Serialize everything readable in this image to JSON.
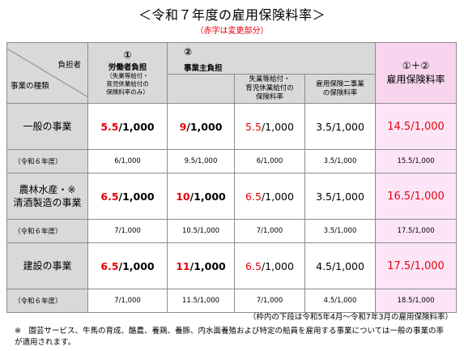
{
  "title": "＜令和７年度の雇用保険料率＞",
  "subtitle": "（赤字は変更部分）",
  "header": {
    "burden": "負担者",
    "business_type": "事業の種類",
    "worker_num": "①",
    "worker_label": "労働者負担",
    "worker_sub1": "（失業等給付・",
    "worker_sub2": "育児休業給付の",
    "worker_sub3": "保険料率のみ）",
    "employer_num": "②",
    "employer_label": "事業主負担",
    "employer_sub_a1": "失業等給付・",
    "employer_sub_a2": "育児休業給付の",
    "employer_sub_a3": "保険料率",
    "employer_sub_b1": "雇用保険二事業",
    "employer_sub_b2": "の保険料率",
    "total_num": "①＋②",
    "total_label": "雇用保険料率"
  },
  "rows": [
    {
      "category": "一般の事業",
      "category_line2": "",
      "worker_red": "5.5",
      "worker_rest": "/1,000",
      "employer_red": "9",
      "employer_rest": "/1,000",
      "emp_a_red": "5.5",
      "emp_a_rest": "/1,000",
      "emp_b": "3.5/1,000",
      "total": "14.5/1,000",
      "prev_label": "（令和６年度）",
      "prev_worker": "6/1,000",
      "prev_employer": "9.5/1,000",
      "prev_emp_a": "6/1,000",
      "prev_emp_b": "3.5/1,000",
      "prev_total": "15.5/1,000"
    },
    {
      "category": "農林水産・※",
      "category_line2": "清酒製造の事業",
      "worker_red": "6.5",
      "worker_rest": "/1,000",
      "employer_red": "10",
      "employer_rest": "/1,000",
      "emp_a_red": "6.5",
      "emp_a_rest": "/1,000",
      "emp_b": "3.5/1,000",
      "total": "16.5/1,000",
      "prev_label": "（令和６年度）",
      "prev_worker": "7/1,000",
      "prev_employer": "10.5/1,000",
      "prev_emp_a": "7/1,000",
      "prev_emp_b": "3.5/1,000",
      "prev_total": "17.5/1,000"
    },
    {
      "category": "建設の事業",
      "category_line2": "",
      "worker_red": "6.5",
      "worker_rest": "/1,000",
      "employer_red": "11",
      "employer_rest": "/1,000",
      "emp_a_red": "6.5",
      "emp_a_rest": "/1,000",
      "emp_b": "4.5/1,000",
      "total": "17.5/1,000",
      "prev_label": "（令和６年度）",
      "prev_worker": "7/1,000",
      "prev_employer": "11.5/1,000",
      "prev_emp_a": "7/1,000",
      "prev_emp_b": "4.5/1,000",
      "prev_total": "18.5/1,000"
    }
  ],
  "note_period": "（枠内の下段は令和5年4月～令和7年3月の雇用保険料率）",
  "note_footnote": "※　園芸サービス、牛馬の育成、酪農、養鶏、養豚、内水面養殖および特定の船員を雇用する事業については一般の事業の率が適用されます。",
  "colors": {
    "red": "#e8000b",
    "header_gray": "#d9d9d9",
    "total_pink": "#fde5f8"
  }
}
